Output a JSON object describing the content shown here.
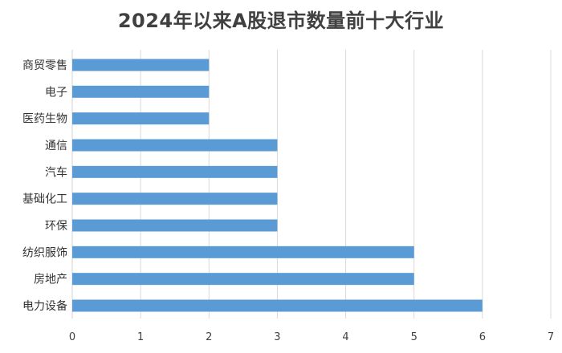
{
  "chart_data": {
    "type": "bar",
    "orientation": "horizontal",
    "title": "2024年以来A股退市数量前十大行业",
    "categories": [
      "商贸零售",
      "电子",
      "医药生物",
      "通信",
      "汽车",
      "基础化工",
      "环保",
      "纺织服饰",
      "房地产",
      "电力设备"
    ],
    "values": [
      2,
      2,
      2,
      3,
      3,
      3,
      3,
      5,
      5,
      6
    ],
    "xlim": [
      0,
      7
    ],
    "xticks": [
      0,
      1,
      2,
      3,
      4,
      5,
      6,
      7
    ],
    "grid": true,
    "legend": "none",
    "bar_color": "#5b9bd5",
    "grid_color": "#d9d9d9"
  }
}
